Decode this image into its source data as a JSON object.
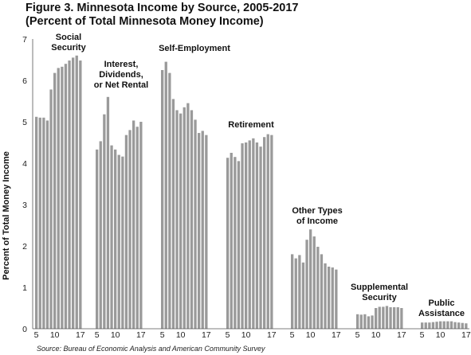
{
  "title_line1": "Figure 3. Minnesota Income by Source, 2005-2017",
  "title_line2": "(Percent of Total Minnesota Money Income)",
  "source": "Source: Bureau of Economic Analysis and American Community Survey",
  "colors": {
    "bar": "#9a9a9a",
    "axis": "#555555"
  },
  "chart_data": {
    "type": "bar",
    "title": "Figure 3. Minnesota Income by Source, 2005-2017",
    "subtitle": "(Percent of Total Minnesota Money Income)",
    "ylabel": "Percent of Total Money Income",
    "xlabel": "",
    "ylim": [
      0,
      7
    ],
    "yticks": [
      0,
      1,
      2,
      3,
      4,
      5,
      6,
      7
    ],
    "grid": false,
    "x": [
      2005,
      2006,
      2007,
      2008,
      2009,
      2010,
      2011,
      2012,
      2013,
      2014,
      2015,
      2016,
      2017
    ],
    "x_tick_labels": [
      "5",
      "10",
      "17"
    ],
    "groups": [
      {
        "name": "Social Security",
        "label_lines": [
          "Social",
          "Security"
        ],
        "values": [
          5.12,
          5.1,
          5.1,
          5.03,
          5.78,
          6.18,
          6.3,
          6.33,
          6.4,
          6.48,
          6.55,
          6.6,
          6.48
        ]
      },
      {
        "name": "Interest, Dividends, or Net Rental",
        "label_lines": [
          "Interest,",
          "Dividends,",
          "or Net Rental"
        ],
        "values": [
          4.33,
          4.53,
          5.18,
          5.6,
          4.43,
          4.33,
          4.2,
          4.16,
          4.68,
          4.8,
          5.03,
          4.88,
          5.0
        ]
      },
      {
        "name": "Self-Employment",
        "label_lines": [
          "Self-Employment"
        ],
        "values": [
          6.25,
          6.45,
          6.18,
          5.55,
          5.28,
          5.2,
          5.35,
          5.45,
          5.28,
          5.05,
          4.73,
          4.78,
          4.68
        ]
      },
      {
        "name": "Retirement",
        "label_lines": [
          "Retirement"
        ],
        "values": [
          4.13,
          4.25,
          4.15,
          4.05,
          4.48,
          4.5,
          4.55,
          4.6,
          4.5,
          4.4,
          4.63,
          4.7,
          4.68
        ]
      },
      {
        "name": "Other Types of Income",
        "label_lines": [
          "Other Types",
          "of Income"
        ],
        "values": [
          1.8,
          1.7,
          1.78,
          1.6,
          2.15,
          2.4,
          2.23,
          1.98,
          1.8,
          1.58,
          1.5,
          1.48,
          1.43
        ]
      },
      {
        "name": "Supplemental Security",
        "label_lines": [
          "Supplemental",
          "Security"
        ],
        "values": [
          0.35,
          0.34,
          0.35,
          0.3,
          0.32,
          0.5,
          0.53,
          0.53,
          0.55,
          0.52,
          0.52,
          0.52,
          0.5
        ]
      },
      {
        "name": "Public Assistance",
        "label_lines": [
          "Public",
          "Assistance"
        ],
        "values": [
          0.15,
          0.15,
          0.15,
          0.16,
          0.17,
          0.18,
          0.18,
          0.18,
          0.18,
          0.16,
          0.15,
          0.14,
          0.13
        ]
      }
    ]
  }
}
